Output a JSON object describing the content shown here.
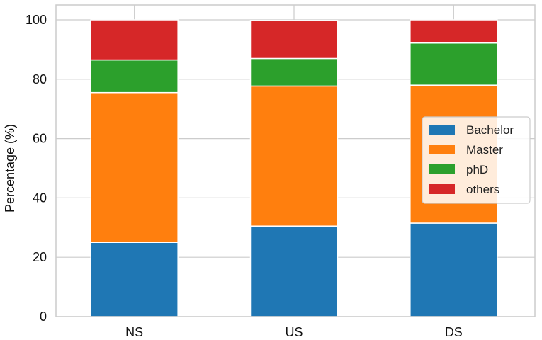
{
  "chart_data": {
    "type": "bar",
    "stacked": true,
    "title": "",
    "xlabel": "",
    "ylabel": "Percentage (%)",
    "ylim": [
      0,
      100
    ],
    "y_ticks": [
      0,
      20,
      40,
      60,
      80,
      100
    ],
    "grid": true,
    "legend_position": "center-right",
    "categories": [
      "NS",
      "US",
      "DS"
    ],
    "series": [
      {
        "name": "Bachelor",
        "color": "#1f77b4",
        "values": [
          25,
          30.5,
          31.5
        ]
      },
      {
        "name": "Master",
        "color": "#ff7f0e",
        "values": [
          50.5,
          47.2,
          46.5
        ]
      },
      {
        "name": "phD",
        "color": "#2ca02c",
        "values": [
          11,
          9.3,
          14.2
        ]
      },
      {
        "name": "others",
        "color": "#d62728",
        "values": [
          13.5,
          12.8,
          7.8
        ]
      }
    ]
  }
}
